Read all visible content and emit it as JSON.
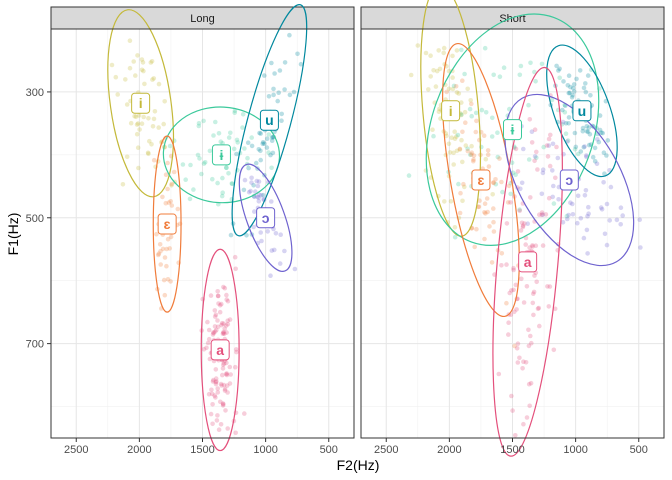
{
  "chart_data": {
    "type": "scatter",
    "xlabel": "F2(Hz)",
    "ylabel": "F1(Hz)",
    "x_reversed": true,
    "y_reversed": true,
    "xlim": [
      2700,
      300
    ],
    "ylim": [
      200,
      850
    ],
    "x_ticks": [
      2500,
      2000,
      1500,
      1000,
      500
    ],
    "y_ticks": [
      300,
      500,
      700
    ],
    "grid": true,
    "legend": "none",
    "colors": {
      "i": "#c4b93a",
      "ɛ": "#f07c3b",
      "ɨ": "#3bc99b",
      "a": "#e4507c",
      "ɔ": "#6f63cf",
      "u": "#00889e"
    },
    "panels": [
      {
        "name": "Long",
        "vowels": [
          {
            "label": "i",
            "f2": 1990,
            "f1": 318,
            "sd2": 120,
            "sd1": 75,
            "rot": -8,
            "n": 60
          },
          {
            "label": "ɨ",
            "f2": 1350,
            "f1": 400,
            "sd2": 230,
            "sd1": 38,
            "rot": 3,
            "n": 55
          },
          {
            "label": "u",
            "f2": 970,
            "f1": 345,
            "sd2": 85,
            "sd1": 95,
            "rot": 15,
            "n": 60
          },
          {
            "label": "ɛ",
            "f2": 1780,
            "f1": 510,
            "sd2": 55,
            "sd1": 70,
            "rot": 0,
            "n": 45
          },
          {
            "label": "ɔ",
            "f2": 1000,
            "f1": 500,
            "sd2": 75,
            "sd1": 45,
            "rot": -20,
            "n": 45
          },
          {
            "label": "a",
            "f2": 1360,
            "f1": 710,
            "sd2": 75,
            "sd1": 80,
            "rot": 0,
            "n": 130
          }
        ]
      },
      {
        "name": "Short",
        "vowels": [
          {
            "label": "i",
            "f2": 1990,
            "f1": 330,
            "sd2": 110,
            "sd1": 100,
            "rot": -5,
            "n": 80
          },
          {
            "label": "ɨ",
            "f2": 1500,
            "f1": 360,
            "sd2": 320,
            "sd1": 95,
            "rot": 20,
            "n": 70
          },
          {
            "label": "u",
            "f2": 950,
            "f1": 330,
            "sd2": 110,
            "sd1": 55,
            "rot": -20,
            "n": 80
          },
          {
            "label": "ɛ",
            "f2": 1750,
            "f1": 440,
            "sd2": 120,
            "sd1": 110,
            "rot": -10,
            "n": 60
          },
          {
            "label": "ɔ",
            "f2": 1050,
            "f1": 440,
            "sd2": 200,
            "sd1": 75,
            "rot": -30,
            "n": 60
          },
          {
            "label": "a",
            "f2": 1380,
            "f1": 570,
            "sd2": 120,
            "sd1": 155,
            "rot": 5,
            "n": 110
          }
        ]
      }
    ]
  }
}
